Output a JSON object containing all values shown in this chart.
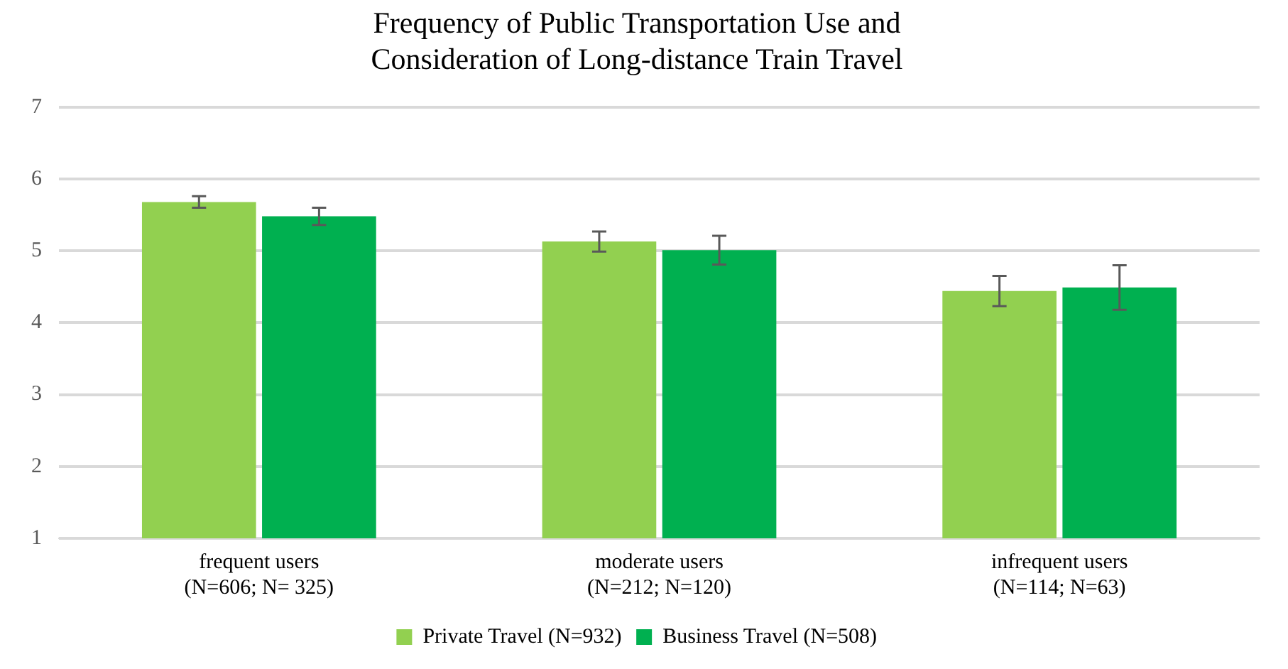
{
  "chart_data": {
    "type": "bar",
    "title": "Frequency of Public Transportation Use and\nConsideration of Long-distance Train Travel",
    "categories": [
      "frequent users\n(N=606; N= 325)",
      "moderate users\n(N=212; N=120)",
      "infrequent users\n(N=114; N=63)"
    ],
    "series": [
      {
        "name": "Private Travel (N=932)",
        "color": "#92d050",
        "values": [
          5.68,
          5.13,
          4.44
        ],
        "errors": [
          0.08,
          0.14,
          0.21
        ]
      },
      {
        "name": "Business Travel (N=508)",
        "color": "#00b050",
        "values": [
          5.48,
          5.01,
          4.49
        ],
        "errors": [
          0.12,
          0.2,
          0.31
        ]
      }
    ],
    "ylim": [
      1,
      7
    ],
    "yticks": [
      1,
      2,
      3,
      4,
      5,
      6,
      7
    ],
    "grid": "y",
    "legend": "bottom"
  }
}
